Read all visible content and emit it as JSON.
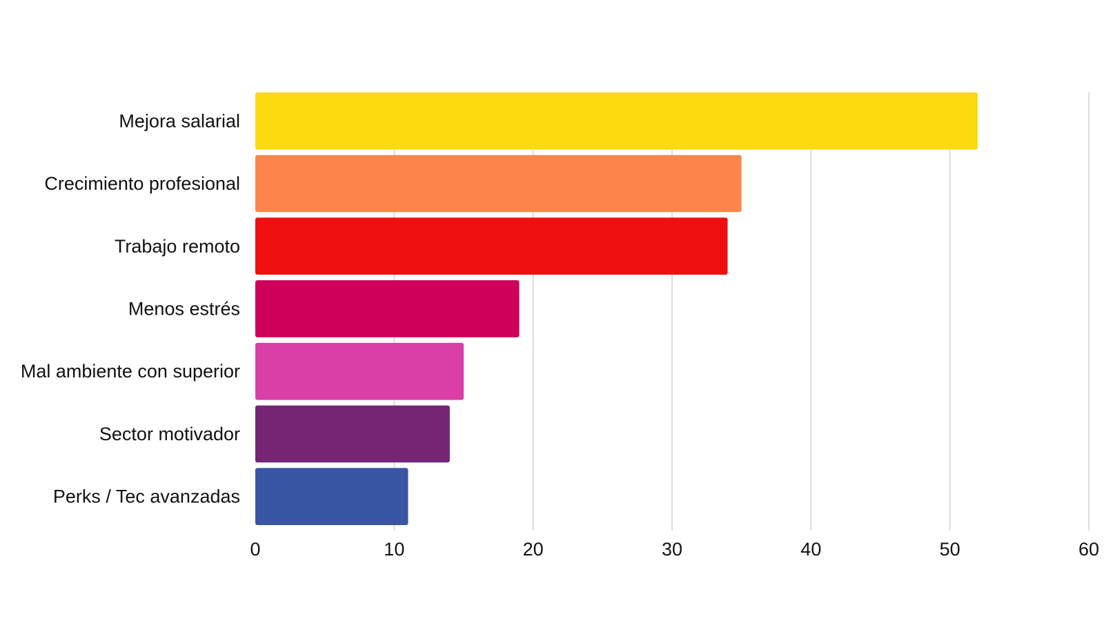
{
  "chart_data": {
    "type": "bar",
    "orientation": "horizontal",
    "title": "",
    "xlabel": "",
    "ylabel": "",
    "categories": [
      "Mejora salarial",
      "Crecimiento profesional",
      "Trabajo remoto",
      "Menos estrés",
      "Mal ambiente con superior",
      "Sector motivador",
      "Perks / Tec avanzadas"
    ],
    "values": [
      52,
      35,
      34,
      19,
      15,
      14,
      11
    ],
    "colors": [
      "#fdd90f",
      "#fc864a",
      "#f00f10",
      "#cf005a",
      "#d93fa7",
      "#752573",
      "#3a55a4"
    ],
    "xlim": [
      0,
      60
    ],
    "xticks": [
      "0",
      "10",
      "20",
      "30",
      "40",
      "50",
      "60"
    ],
    "grid": true,
    "legend": "none"
  }
}
